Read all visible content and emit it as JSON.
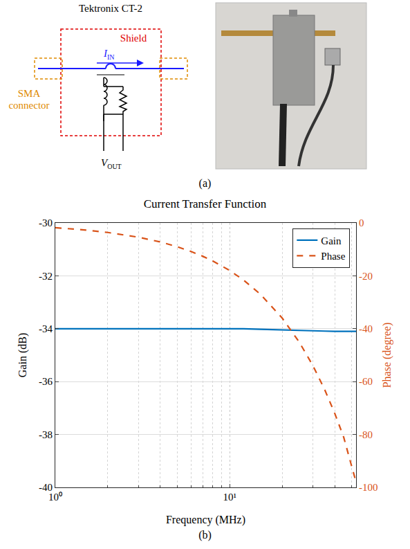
{
  "figure_a": {
    "device_title": "Tektronix CT-2",
    "shield_label": "Shield",
    "current_label": {
      "text": "I",
      "subscript": "IN"
    },
    "connector_label": "SMA connector",
    "output_label": {
      "text": "V",
      "subscript": "OUT"
    },
    "caption": "(a)"
  },
  "caption_b": "(b)",
  "chart_data": {
    "type": "line",
    "title": "Current Transfer Function",
    "x_label": "Frequency (MHz)",
    "y_label": "Gain (dB)",
    "y2_label": "Phase (degree)",
    "log": "x",
    "grid": true,
    "legend": "upper right",
    "xlim": [
      1,
      53
    ],
    "xticks": [
      {
        "value": 1,
        "label": "10⁰"
      },
      {
        "value": 10,
        "label": "10¹"
      }
    ],
    "ylim": [
      -40,
      -30
    ],
    "yticks": [
      -40,
      -38,
      -36,
      -34,
      -32,
      -30
    ],
    "y2lim": [
      -100,
      0
    ],
    "y2ticks": [
      -100,
      -80,
      -60,
      -40,
      -20,
      0
    ],
    "x": [
      1,
      1.5,
      2,
      3,
      4,
      5,
      6,
      7,
      8,
      10,
      12,
      15,
      20,
      25,
      30,
      35,
      40,
      45,
      50,
      53
    ],
    "series": [
      {
        "name": "Gain",
        "color": "#0072bd",
        "line_style": "solid",
        "values": [
          -34,
          -34,
          -34,
          -34,
          -34,
          -34,
          -34,
          -34,
          -34,
          -34,
          -34,
          -34.02,
          -34.05,
          -34.07,
          -34.08,
          -34.09,
          -34.1,
          -34.1,
          -34.1,
          -34.1
        ]
      },
      {
        "name": "Phase",
        "color": "#d95319",
        "line_style": "dash",
        "axis": "y2",
        "values": [
          -1.8,
          -2.7,
          -3.6,
          -5.4,
          -7.2,
          -9,
          -10.8,
          -12.6,
          -14.4,
          -18,
          -21.6,
          -27,
          -36,
          -45,
          -54,
          -63,
          -72,
          -81,
          -92,
          -98
        ]
      }
    ]
  }
}
